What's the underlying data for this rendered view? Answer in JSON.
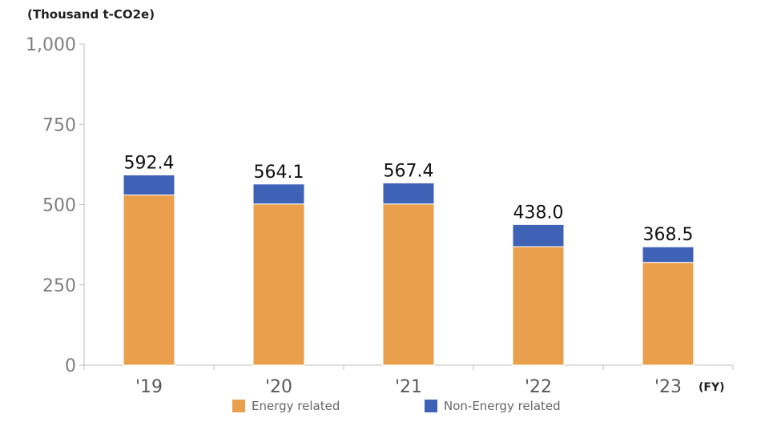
{
  "chart_data": {
    "type": "bar",
    "stacked": true,
    "unit_label": "(Thousand t-CO2e)",
    "x_unit_label": "(FY)",
    "categories": [
      "'19",
      "'20",
      "'21",
      "'22",
      "'23"
    ],
    "series": [
      {
        "name": "Energy related",
        "color": "#E99F4B",
        "values": [
          530,
          502,
          502,
          369,
          320
        ]
      },
      {
        "name": "Non-Energy related",
        "color": "#3E62B6",
        "values": [
          62.4,
          62.1,
          65.4,
          69.0,
          48.5
        ]
      }
    ],
    "totals": [
      "592.4",
      "564.1",
      "567.4",
      "438.0",
      "368.5"
    ],
    "yticks": [
      "0",
      "250",
      "500",
      "750",
      "1,000"
    ],
    "ylim": [
      0,
      1000
    ],
    "grid": false,
    "legend_position": "bottom"
  }
}
